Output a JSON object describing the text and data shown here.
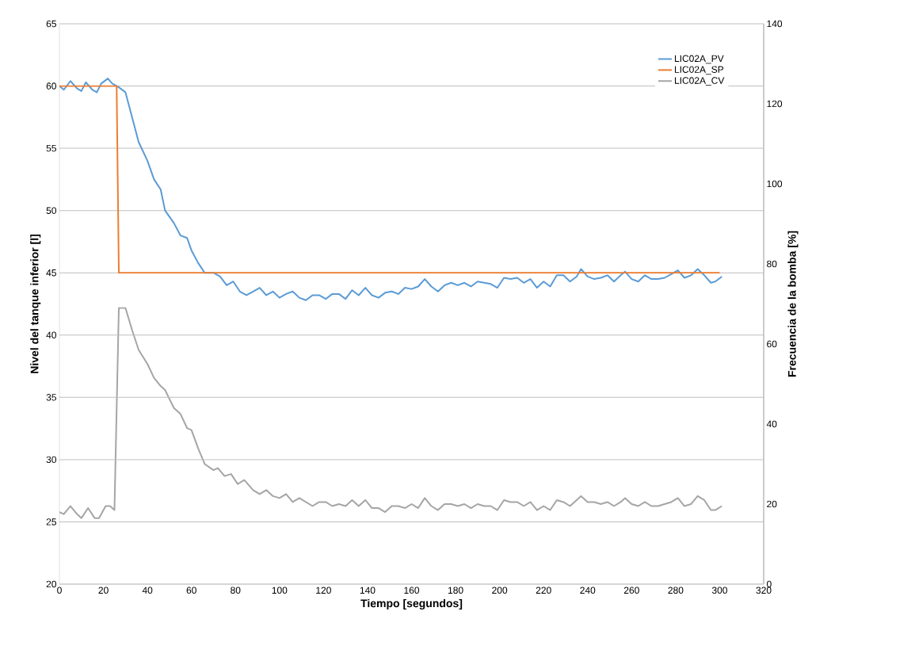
{
  "chart_data": {
    "type": "line",
    "xlabel": "Tiempo [segundos]",
    "ylabel": "Nivel del tanque inferior [l]",
    "y2label": "Frecuencia de la bomba [%]",
    "xlim": [
      0,
      320
    ],
    "xticks": [
      0,
      20,
      40,
      60,
      80,
      100,
      120,
      140,
      160,
      180,
      200,
      220,
      240,
      260,
      280,
      300,
      320
    ],
    "ylim": [
      20,
      65
    ],
    "yticks": [
      20,
      25,
      30,
      35,
      40,
      45,
      50,
      55,
      60,
      65
    ],
    "y2lim": [
      0,
      140
    ],
    "y2ticks": [
      0,
      20,
      40,
      60,
      80,
      100,
      120,
      140
    ],
    "grid": "y",
    "legend": "top right",
    "marker": "none",
    "line_style": "solid",
    "series": [
      {
        "name": "LIC02A_PV",
        "color": "#5b9bd5",
        "x": [
          0,
          2,
          5,
          8,
          10,
          12,
          15,
          17,
          19,
          22,
          24,
          27,
          30,
          33,
          36,
          40,
          43,
          46,
          48,
          52,
          55,
          58,
          60,
          63,
          66,
          70,
          73,
          76,
          79,
          82,
          85,
          88,
          91,
          94,
          97,
          100,
          103,
          106,
          109,
          112,
          115,
          118,
          121,
          124,
          127,
          130,
          133,
          136,
          139,
          142,
          145,
          148,
          151,
          154,
          157,
          160,
          163,
          166,
          169,
          172,
          175,
          178,
          181,
          184,
          187,
          190,
          193,
          196,
          199,
          202,
          205,
          208,
          211,
          214,
          217,
          220,
          223,
          226,
          229,
          232,
          235,
          237,
          240,
          243,
          246,
          249,
          252,
          255,
          257,
          260,
          263,
          266,
          269,
          272,
          275,
          278,
          281,
          284,
          287,
          290,
          293,
          296,
          298,
          301
        ],
        "values": [
          60,
          59.7,
          60.4,
          59.8,
          59.6,
          60.3,
          59.7,
          59.5,
          60.2,
          60.6,
          60.2,
          59.9,
          59.5,
          57.5,
          55.5,
          54,
          52.5,
          51.7,
          50,
          49,
          48,
          47.8,
          46.8,
          45.8,
          45,
          45,
          44.7,
          44,
          44.3,
          43.5,
          43.2,
          43.5,
          43.8,
          43.2,
          43.5,
          43,
          43.3,
          43.5,
          43,
          42.8,
          43.2,
          43.2,
          42.9,
          43.3,
          43.3,
          42.9,
          43.6,
          43.2,
          43.8,
          43.2,
          43,
          43.4,
          43.5,
          43.3,
          43.8,
          43.7,
          43.9,
          44.5,
          43.9,
          43.5,
          44,
          44.2,
          44,
          44.2,
          43.9,
          44.3,
          44.2,
          44.1,
          43.8,
          44.6,
          44.5,
          44.6,
          44.2,
          44.5,
          43.8,
          44.3,
          43.9,
          44.8,
          44.8,
          44.3,
          44.7,
          45.3,
          44.7,
          44.5,
          44.6,
          44.8,
          44.3,
          44.8,
          45.1,
          44.5,
          44.3,
          44.8,
          44.5,
          44.5,
          44.6,
          44.9,
          45.2,
          44.6,
          44.8,
          45.3,
          44.8,
          44.2,
          44.3,
          44.7
        ]
      },
      {
        "name": "LIC02A_SP",
        "color": "#ed7d31",
        "x": [
          0,
          26,
          27,
          300
        ],
        "values": [
          60,
          60,
          45,
          45
        ]
      },
      {
        "name": "LIC02A_CV",
        "color": "#a5a5a5",
        "axis": "y2",
        "x": [
          0,
          2,
          5,
          8,
          10,
          13,
          16,
          18,
          21,
          23,
          25,
          27,
          30,
          33,
          36,
          40,
          43,
          46,
          48,
          52,
          55,
          58,
          60,
          63,
          66,
          70,
          72,
          75,
          78,
          81,
          84,
          88,
          91,
          94,
          97,
          100,
          103,
          106,
          109,
          112,
          115,
          118,
          121,
          124,
          127,
          130,
          133,
          136,
          139,
          142,
          145,
          148,
          151,
          154,
          157,
          160,
          163,
          166,
          169,
          172,
          175,
          178,
          181,
          184,
          187,
          190,
          193,
          196,
          199,
          202,
          205,
          208,
          211,
          214,
          217,
          220,
          223,
          226,
          229,
          232,
          235,
          237,
          240,
          243,
          246,
          249,
          252,
          255,
          257,
          260,
          263,
          266,
          269,
          272,
          275,
          278,
          281,
          284,
          287,
          290,
          293,
          296,
          298,
          301
        ],
        "values": [
          18,
          17.5,
          19.5,
          17.5,
          16.5,
          19,
          16.5,
          16.5,
          19.5,
          19.5,
          18.5,
          69,
          69,
          63.5,
          58.5,
          55,
          51.5,
          49.5,
          48.5,
          44,
          42.5,
          39,
          38.5,
          34,
          30,
          28.5,
          29,
          27,
          27.5,
          25,
          26,
          23.5,
          22.5,
          23.5,
          22,
          21.5,
          22.5,
          20.5,
          21.5,
          20.5,
          19.5,
          20.5,
          20.5,
          19.5,
          20,
          19.5,
          21,
          19.5,
          21,
          19,
          19,
          18,
          19.5,
          19.5,
          19,
          20,
          19,
          21.5,
          19.5,
          18.5,
          20,
          20,
          19.5,
          20,
          19,
          20,
          19.5,
          19.5,
          18.5,
          21,
          20.5,
          20.5,
          19.5,
          20.5,
          18.5,
          19.5,
          18.5,
          21,
          20.5,
          19.5,
          21,
          22,
          20.5,
          20.5,
          20,
          20.5,
          19.5,
          20.5,
          21.5,
          20,
          19.5,
          20.5,
          19.5,
          19.5,
          20,
          20.5,
          21.5,
          19.5,
          20,
          22,
          21,
          18.5,
          18.5,
          19.5
        ]
      }
    ]
  }
}
